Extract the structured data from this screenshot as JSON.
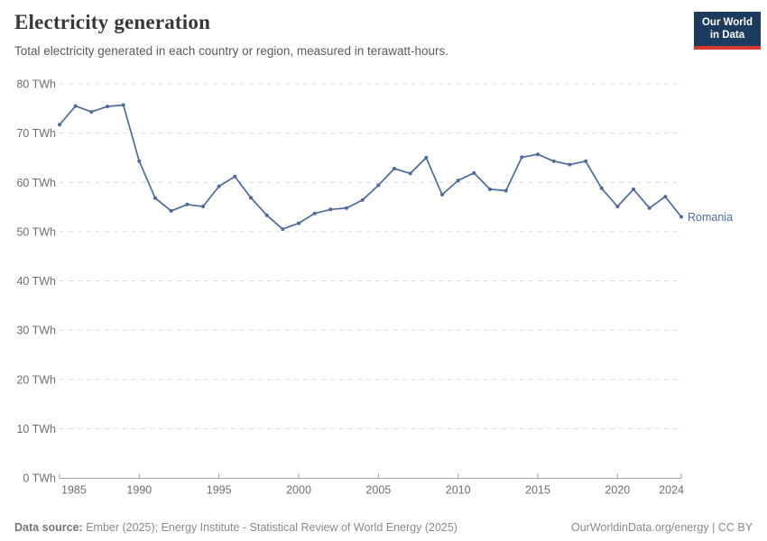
{
  "header": {
    "title": "Electricity generation",
    "subtitle": "Total electricity generated in each country or region, measured in terawatt-hours.",
    "logo": {
      "line1": "Our World",
      "line2": "in Data",
      "background": "#1d3a5f",
      "accent": "#d6392a"
    }
  },
  "chart_data": {
    "type": "line",
    "title": "Electricity generation",
    "unit": "TWh",
    "xlim": [
      1985,
      2024
    ],
    "ylim": [
      0,
      80
    ],
    "grid": true,
    "legend_position": "end-of-line-label",
    "x_ticks": [
      1985,
      1990,
      1995,
      2000,
      2005,
      2010,
      2015,
      2020,
      2024
    ],
    "y_ticks": [
      0,
      10,
      20,
      30,
      40,
      50,
      60,
      70,
      80
    ],
    "y_tick_suffix": " TWh",
    "x": [
      1985,
      1986,
      1987,
      1988,
      1989,
      1990,
      1991,
      1992,
      1993,
      1994,
      1995,
      1996,
      1997,
      1998,
      1999,
      2000,
      2001,
      2002,
      2003,
      2004,
      2005,
      2006,
      2007,
      2008,
      2009,
      2010,
      2011,
      2012,
      2013,
      2014,
      2015,
      2016,
      2017,
      2018,
      2019,
      2020,
      2021,
      2022,
      2023,
      2024
    ],
    "series": [
      {
        "name": "Romania",
        "color": "#4c6a9c",
        "values": [
          71.7,
          75.5,
          74.3,
          75.4,
          75.7,
          64.3,
          56.8,
          54.2,
          55.5,
          55.1,
          59.2,
          61.2,
          56.9,
          53.3,
          50.5,
          51.7,
          53.7,
          54.5,
          54.8,
          56.4,
          59.4,
          62.8,
          61.8,
          65.0,
          57.5,
          60.4,
          61.9,
          58.6,
          58.3,
          65.1,
          65.7,
          64.3,
          63.6,
          64.3,
          58.8,
          55.1,
          58.6,
          54.8,
          57.1,
          53.0
        ]
      }
    ],
    "colors": {
      "grid": "#dcdcdc",
      "axis": "#a1a1a1",
      "tick_label": "#6e6e6e"
    }
  },
  "footer": {
    "source_label": "Data source:",
    "source_text": "Ember (2025); Energy Institute - Statistical Review of World Energy (2025)",
    "rights": "OurWorldinData.org/energy | CC BY"
  }
}
